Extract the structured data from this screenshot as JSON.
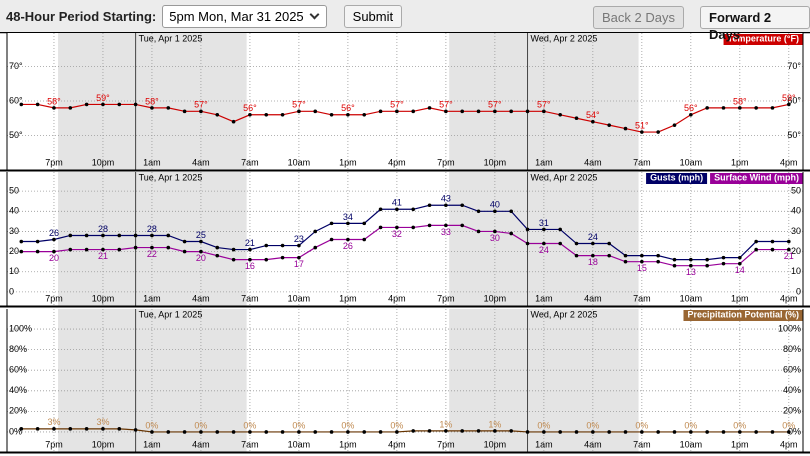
{
  "ui": {
    "period_label": "48-Hour Period Starting:",
    "period_select": "5pm Mon, Mar 31 2025",
    "submit": "Submit",
    "back": "Back 2 Days",
    "forward": "Forward 2 Days"
  },
  "chart_data": [
    {
      "type": "line",
      "legend": "top-right",
      "grid": true,
      "categories": [
        null,
        null,
        "7pm",
        null,
        null,
        "10pm",
        null,
        null,
        "1am",
        null,
        null,
        "4am",
        null,
        null,
        "7am",
        null,
        null,
        "10am",
        null,
        null,
        "1pm",
        null,
        null,
        "4pm",
        null,
        null,
        "7pm",
        null,
        null,
        "10pm",
        null,
        null,
        "1am",
        null,
        null,
        "4am",
        null,
        null,
        "7am",
        null,
        null,
        "10am",
        null,
        null,
        "1pm",
        null,
        null,
        "4pm"
      ],
      "date_markers": [
        {
          "label": "Tue, Apr 1 2025",
          "index": 7
        },
        {
          "label": "Wed, Apr 2 2025",
          "index": 31
        }
      ],
      "night_shading": [
        [
          2.25,
          13.8
        ],
        [
          26.2,
          37.8
        ]
      ],
      "ylim": [
        40,
        79.7
      ],
      "yticks": [
        {
          "value": 50,
          "label": "50°"
        },
        {
          "value": 60,
          "label": "60°"
        },
        {
          "value": 70,
          "label": "70°"
        }
      ],
      "series": [
        {
          "name": "Temperature (°F)",
          "color": "#cc0000",
          "label_color": "#dd0000",
          "values": [
            59,
            59,
            58,
            58,
            59,
            59,
            59,
            59,
            58,
            58,
            57,
            57,
            56,
            54,
            56,
            56,
            56,
            57,
            57,
            56,
            56,
            56,
            57,
            57,
            57,
            58,
            57,
            57,
            57,
            57,
            57,
            57,
            57,
            56,
            55,
            54,
            53,
            52,
            51,
            51,
            53,
            56,
            58,
            58,
            58,
            58,
            58,
            59
          ],
          "value_labels": [
            null,
            null,
            "58°",
            null,
            null,
            "59°",
            null,
            null,
            "58°",
            null,
            null,
            "57°",
            null,
            null,
            "56°",
            null,
            null,
            "57°",
            null,
            null,
            "56°",
            null,
            null,
            "57°",
            null,
            null,
            "57°",
            null,
            null,
            "57°",
            null,
            null,
            "57°",
            null,
            null,
            "54°",
            null,
            null,
            "51°",
            null,
            null,
            "56°",
            null,
            null,
            "58°",
            null,
            null,
            "59°"
          ]
        }
      ]
    },
    {
      "type": "line",
      "legend": "top-right",
      "grid": true,
      "categories": [
        null,
        null,
        "7pm",
        null,
        null,
        "10pm",
        null,
        null,
        "1am",
        null,
        null,
        "4am",
        null,
        null,
        "7am",
        null,
        null,
        "10am",
        null,
        null,
        "1pm",
        null,
        null,
        "4pm",
        null,
        null,
        "7pm",
        null,
        null,
        "10pm",
        null,
        null,
        "1am",
        null,
        null,
        "4am",
        null,
        null,
        "7am",
        null,
        null,
        "10am",
        null,
        null,
        "1pm",
        null,
        null,
        "4pm"
      ],
      "date_markers": [
        {
          "label": "Tue, Apr 1 2025",
          "index": 7
        },
        {
          "label": "Wed, Apr 2 2025",
          "index": 31
        }
      ],
      "night_shading": [
        [
          2.25,
          13.8
        ],
        [
          26.2,
          37.8
        ]
      ],
      "ylim": [
        -7,
        59.5
      ],
      "yticks": [
        0,
        10,
        20,
        30,
        40,
        50
      ],
      "series": [
        {
          "name": "Gusts (mph)",
          "color": "#000066",
          "label_color": "#000066",
          "label_side": "above",
          "values": [
            25,
            25,
            26,
            28,
            28,
            28,
            28,
            28,
            28,
            28,
            25,
            25,
            22,
            21,
            21,
            23,
            23,
            23,
            30,
            34,
            34,
            34,
            41,
            41,
            41,
            43,
            43,
            43,
            40,
            40,
            40,
            31,
            31,
            31,
            24,
            24,
            24,
            18,
            18,
            18,
            16,
            16,
            16,
            17,
            17,
            25,
            25,
            25
          ],
          "value_labels": [
            null,
            null,
            "26",
            null,
            null,
            "28",
            null,
            null,
            "28",
            null,
            null,
            "25",
            null,
            null,
            "21",
            null,
            null,
            "23",
            null,
            null,
            "34",
            null,
            null,
            "41",
            null,
            null,
            "43",
            null,
            null,
            "40",
            null,
            null,
            "31",
            null,
            null,
            "24",
            null,
            null,
            null,
            null,
            null,
            null,
            null,
            null,
            null,
            null,
            null,
            null
          ]
        },
        {
          "name": "Surface Wind (mph)",
          "color": "#990099",
          "label_color": "#990099",
          "label_side": "below",
          "values": [
            20,
            20,
            20,
            21,
            21,
            21,
            21,
            22,
            22,
            22,
            20,
            20,
            18,
            16,
            16,
            16,
            17,
            17,
            22,
            26,
            26,
            26,
            32,
            32,
            32,
            33,
            33,
            33,
            30,
            30,
            29,
            24,
            24,
            24,
            18,
            18,
            18,
            15,
            15,
            15,
            13,
            13,
            13,
            14,
            14,
            21,
            21,
            21
          ],
          "value_labels": [
            null,
            null,
            "20",
            null,
            null,
            "21",
            null,
            null,
            "22",
            null,
            null,
            "20",
            null,
            null,
            "16",
            null,
            null,
            "17",
            null,
            null,
            "26",
            null,
            null,
            "32",
            null,
            null,
            "33",
            null,
            null,
            "30",
            null,
            null,
            "24",
            null,
            null,
            "18",
            null,
            null,
            "15",
            null,
            null,
            "13",
            null,
            null,
            "14",
            null,
            null,
            "21"
          ]
        }
      ]
    },
    {
      "type": "line",
      "legend": "top-right",
      "grid": true,
      "categories": [
        null,
        null,
        "7pm",
        null,
        null,
        "10pm",
        null,
        null,
        "1am",
        null,
        null,
        "4am",
        null,
        null,
        "7am",
        null,
        null,
        "10am",
        null,
        null,
        "1pm",
        null,
        null,
        "4pm",
        null,
        null,
        "7pm",
        null,
        null,
        "10pm",
        null,
        null,
        "1am",
        null,
        null,
        "4am",
        null,
        null,
        "7am",
        null,
        null,
        "10am",
        null,
        null,
        "1pm",
        null,
        null,
        "4pm"
      ],
      "date_markers": [
        {
          "label": "Tue, Apr 1 2025",
          "index": 7
        },
        {
          "label": "Wed, Apr 2 2025",
          "index": 31
        }
      ],
      "night_shading": [
        [
          2.25,
          13.8
        ],
        [
          26.2,
          37.8
        ]
      ],
      "ylim": [
        -19.5,
        119.5
      ],
      "yticks": [
        {
          "value": 0,
          "label": "0%"
        },
        {
          "value": 20,
          "label": "20%"
        },
        {
          "value": 40,
          "label": "40%"
        },
        {
          "value": 60,
          "label": "60%"
        },
        {
          "value": 80,
          "label": "80%"
        },
        {
          "value": 100,
          "label": "100%"
        }
      ],
      "series": [
        {
          "name": "Precipitation Potential (%)",
          "color": "#996633",
          "line_color": "#663300",
          "label_color": "#c08a50",
          "values": [
            3,
            3,
            3,
            3,
            3,
            3,
            3,
            2,
            0,
            0,
            0,
            0,
            0,
            0,
            0,
            0,
            0,
            0,
            0,
            0,
            0,
            0,
            0,
            0,
            1,
            1,
            1,
            1,
            1,
            1,
            1,
            0,
            0,
            0,
            0,
            0,
            0,
            0,
            0,
            0,
            0,
            0,
            0,
            0,
            0,
            0,
            0,
            0
          ],
          "value_labels": [
            null,
            null,
            "3%",
            null,
            null,
            "3%",
            null,
            null,
            "0%",
            null,
            null,
            "0%",
            null,
            null,
            "0%",
            null,
            null,
            "0%",
            null,
            null,
            "0%",
            null,
            null,
            "0%",
            null,
            null,
            "1%",
            null,
            null,
            "1%",
            null,
            null,
            "0%",
            null,
            null,
            "0%",
            null,
            null,
            "0%",
            null,
            null,
            "0%",
            null,
            null,
            "0%",
            null,
            null,
            "0%"
          ]
        }
      ]
    }
  ]
}
